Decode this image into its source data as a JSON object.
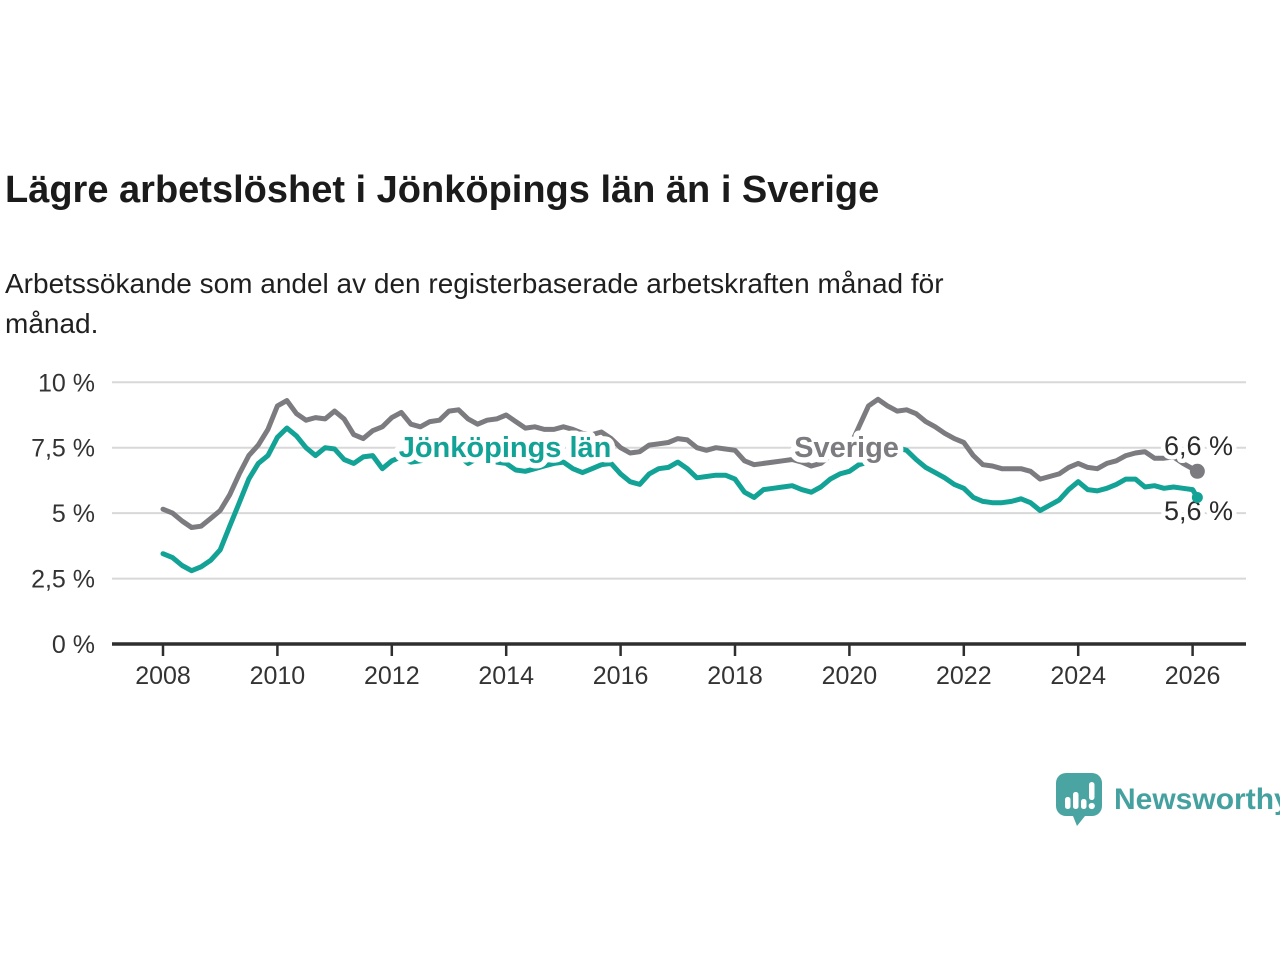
{
  "header": {
    "title": "Lägre arbetslöshet i Jönköpings län än i Sverige",
    "subtitle": "Arbetssökande som andel av den registerbaserade arbetskraften månad för\nmånad."
  },
  "chart_data": {
    "type": "line",
    "title": "Lägre arbetslöshet i Jönköpings län än i Sverige",
    "subtitle": "Arbetssökande som andel av den registerbaserade arbetskraften månad för månad.",
    "unit": "%",
    "x_start": 2008,
    "points_per_year": 6,
    "x_end": 2026.083,
    "xlim": [
      2008,
      2026.3
    ],
    "ylim": [
      0,
      10
    ],
    "grid": "horizontal",
    "y_ticks": {
      "values": [
        0,
        2.5,
        5,
        7.5,
        10
      ],
      "labels": [
        "0 %",
        "2,5 %",
        "5 %",
        "7,5 %",
        "10 %"
      ]
    },
    "x_ticks": {
      "values": [
        2008,
        2010,
        2012,
        2014,
        2016,
        2018,
        2020,
        2022,
        2024,
        2026
      ],
      "labels": [
        "2008",
        "2010",
        "2012",
        "2014",
        "2016",
        "2018",
        "2020",
        "2022",
        "2024",
        "2026"
      ]
    },
    "colors": {
      "sverige": "#7b7b80",
      "jonkoping": "#12a296",
      "axis": "#2e2e2e",
      "grid": "#d8d8d8",
      "tick_text": "#333333",
      "end_label_text": "#2b2b2b"
    },
    "series": [
      {
        "name": "Sverige",
        "color": "#7b7b80",
        "end_label": "6,6 %",
        "end_value": 6.6,
        "end_dot": true,
        "inline_label": {
          "text": "Sverige",
          "x_year": 2019.95,
          "y_value": 7.53
        },
        "values": [
          5.15,
          5.0,
          4.7,
          4.45,
          4.5,
          4.8,
          5.1,
          5.7,
          6.5,
          7.2,
          7.6,
          8.2,
          9.1,
          9.3,
          8.8,
          8.55,
          8.65,
          8.6,
          8.9,
          8.6,
          8.0,
          7.85,
          8.15,
          8.3,
          8.65,
          8.85,
          8.4,
          8.3,
          8.5,
          8.55,
          8.9,
          8.95,
          8.6,
          8.4,
          8.55,
          8.6,
          8.75,
          8.5,
          8.25,
          8.3,
          8.2,
          8.2,
          8.3,
          8.2,
          8.05,
          8.0,
          8.1,
          7.85,
          7.5,
          7.3,
          7.35,
          7.6,
          7.65,
          7.7,
          7.85,
          7.8,
          7.5,
          7.4,
          7.5,
          7.45,
          7.4,
          7.0,
          6.85,
          6.9,
          6.95,
          7.0,
          7.05,
          6.95,
          6.8,
          6.9,
          7.2,
          7.35,
          7.5,
          8.3,
          9.1,
          9.35,
          9.1,
          8.9,
          8.95,
          8.8,
          8.5,
          8.3,
          8.05,
          7.85,
          7.7,
          7.2,
          6.85,
          6.8,
          6.7,
          6.7,
          6.7,
          6.6,
          6.3,
          6.4,
          6.5,
          6.75,
          6.9,
          6.75,
          6.7,
          6.9,
          7.0,
          7.2,
          7.3,
          7.35,
          7.1,
          7.1,
          7.15,
          6.9,
          6.7,
          6.6
        ]
      },
      {
        "name": "Jönköpings län",
        "color": "#12a296",
        "end_label": "5,6 %",
        "end_value": 5.6,
        "end_dot": true,
        "inline_label": {
          "text": "Jönköpings län",
          "x_year": 2013.98,
          "y_value": 7.53
        },
        "values": [
          3.45,
          3.3,
          3.0,
          2.8,
          2.95,
          3.2,
          3.6,
          4.5,
          5.4,
          6.3,
          6.9,
          7.2,
          7.9,
          8.25,
          7.95,
          7.5,
          7.2,
          7.5,
          7.45,
          7.05,
          6.9,
          7.15,
          7.2,
          6.7,
          7.0,
          7.15,
          6.95,
          7.0,
          7.1,
          7.2,
          7.45,
          7.2,
          6.9,
          7.1,
          7.25,
          6.95,
          6.9,
          6.65,
          6.6,
          6.7,
          6.8,
          6.9,
          6.95,
          6.7,
          6.55,
          6.7,
          6.85,
          6.9,
          6.5,
          6.2,
          6.1,
          6.5,
          6.7,
          6.75,
          6.95,
          6.7,
          6.35,
          6.4,
          6.45,
          6.45,
          6.3,
          5.8,
          5.6,
          5.9,
          5.95,
          6.0,
          6.05,
          5.9,
          5.8,
          6.0,
          6.3,
          6.5,
          6.6,
          6.85,
          6.95,
          7.3,
          7.45,
          7.5,
          7.4,
          7.05,
          6.75,
          6.55,
          6.35,
          6.1,
          5.95,
          5.6,
          5.45,
          5.4,
          5.4,
          5.45,
          5.55,
          5.4,
          5.1,
          5.3,
          5.5,
          5.9,
          6.2,
          5.9,
          5.85,
          5.95,
          6.1,
          6.3,
          6.3,
          6.0,
          6.05,
          5.95,
          6.0,
          5.95,
          5.9,
          5.6
        ]
      }
    ],
    "legend_position": "inline"
  },
  "branding": {
    "logo_text": "Newsworthy",
    "icon_color": "#4aa5a2",
    "text_color": "#45a1a0",
    "icon": "speech-bubble-bar-chart-icon"
  }
}
